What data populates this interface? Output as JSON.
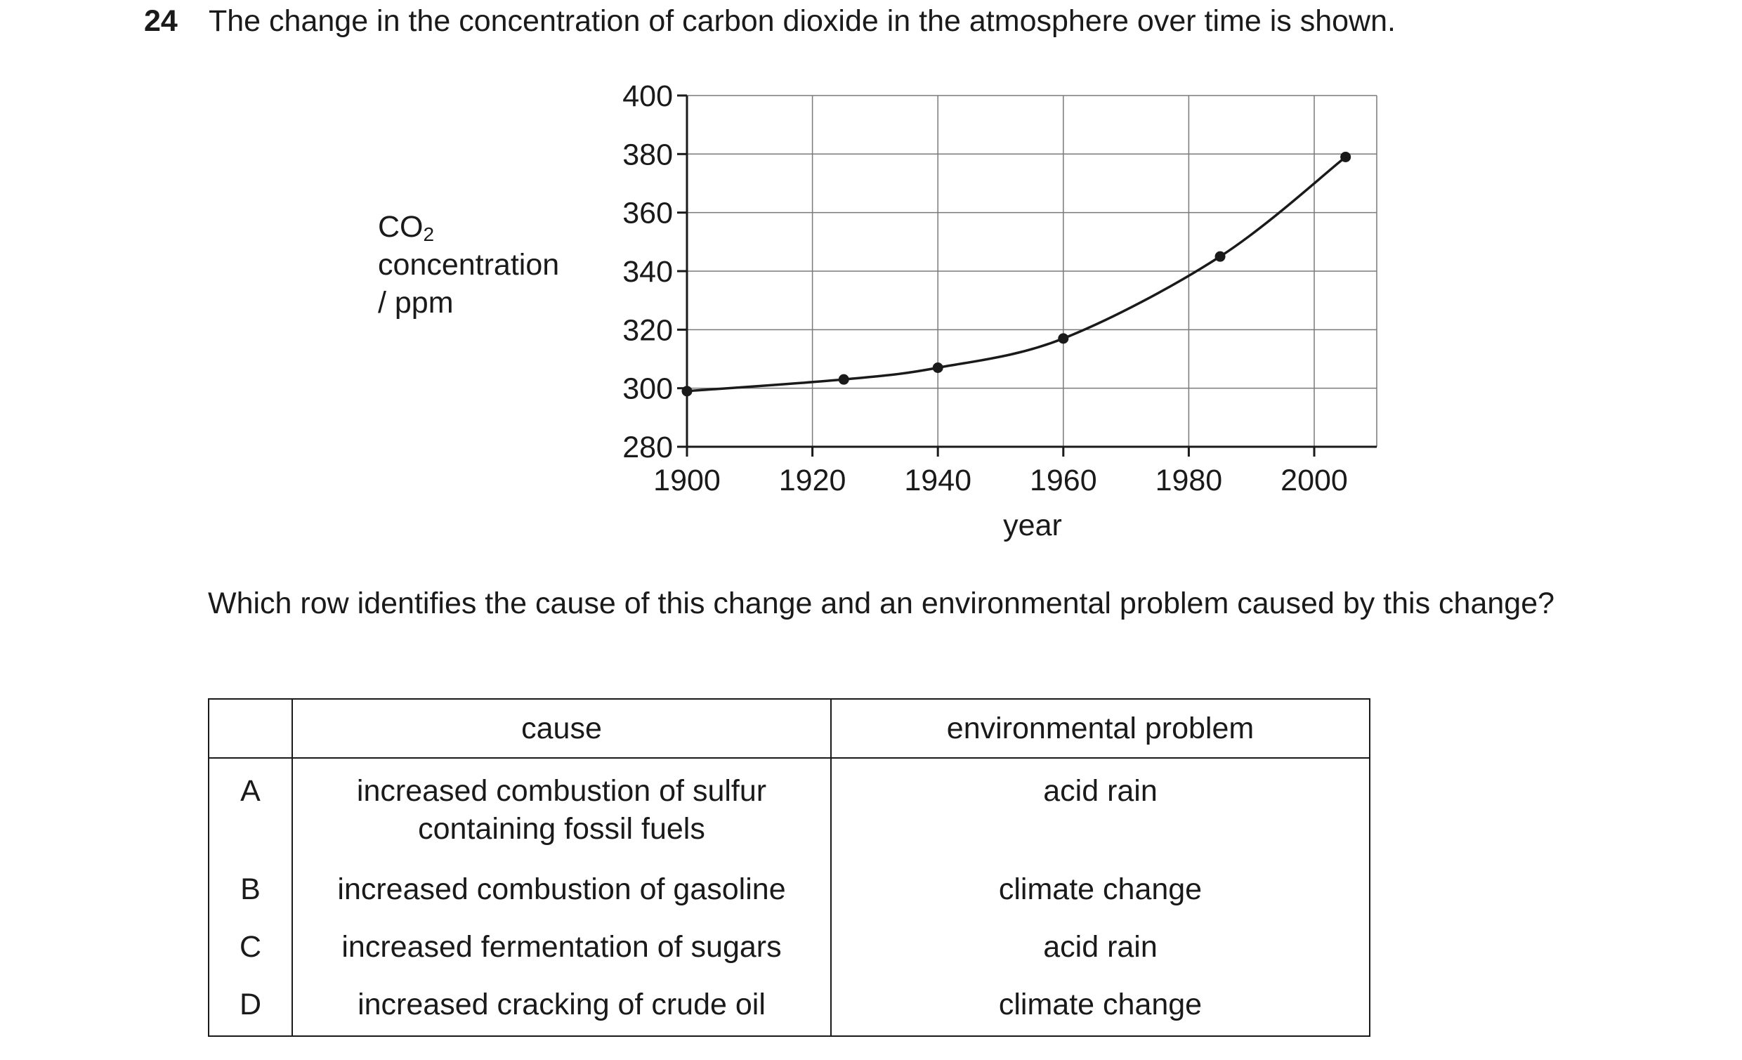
{
  "question": {
    "number": "24",
    "stem": "The change in the concentration of carbon dioxide in the atmosphere over time is shown.",
    "prompt": "Which row identifies the cause of this change and an environmental problem caused by this change?"
  },
  "chart_data": {
    "type": "line",
    "xlabel": "year",
    "ylabel_line1": "CO",
    "ylabel_sub": "2",
    "ylabel_line2": "concentration",
    "ylabel_line3": "/ ppm",
    "xlim": [
      1900,
      2010
    ],
    "ylim": [
      280,
      400
    ],
    "x_ticks": [
      1900,
      1920,
      1940,
      1960,
      1980,
      2000
    ],
    "y_ticks": [
      280,
      300,
      320,
      340,
      360,
      380,
      400
    ],
    "grid": true,
    "series": [
      {
        "x": [
          1900,
          1925,
          1940,
          1960,
          1985,
          2005
        ],
        "y": [
          299,
          303,
          307,
          317,
          345,
          379
        ]
      }
    ]
  },
  "table": {
    "headers": [
      "",
      "cause",
      "environmental problem"
    ],
    "rows": [
      {
        "letter": "A",
        "cause_line1": "increased combustion of sulfur",
        "cause_line2": "containing fossil fuels",
        "problem": "acid rain"
      },
      {
        "letter": "B",
        "cause_line1": "increased combustion of gasoline",
        "cause_line2": "",
        "problem": "climate change"
      },
      {
        "letter": "C",
        "cause_line1": "increased fermentation of sugars",
        "cause_line2": "",
        "problem": "acid rain"
      },
      {
        "letter": "D",
        "cause_line1": "increased cracking of crude oil",
        "cause_line2": "",
        "problem": "climate change"
      }
    ]
  }
}
